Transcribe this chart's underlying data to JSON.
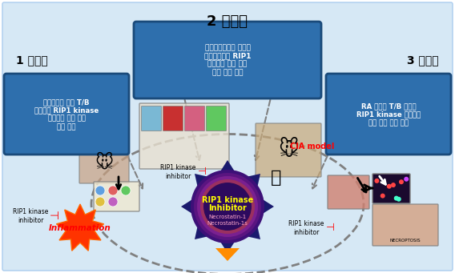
{
  "background_color": "#ffffff",
  "title_top": "2 차년도",
  "label_year1": "1 차년도",
  "label_year3": "3 차년도",
  "box_year2_text": "류마티스관절염 전임상\n동물모델에서 RIP1\n억제제에 따른 질병\n제어 효과 조사",
  "box_year1_text": "동물모델의 병인 T/B\n세포에서 RIP1 kinase\n억제제를 통한 조절\n효과 조사",
  "box_year3_text": "RA 환자의 T/B 세포에\nRIP1 kinase 억제제를\n통한 치료 효과 조사",
  "center_title1": "RIP1 kinase",
  "center_title2": "Inhibitor",
  "center_sub1": "Necrostatin-1",
  "center_sub2": "Necrostatin-1s",
  "inflammation_text": "Inflammation",
  "rip1_inhibitor_text": "RIP1 kinase\ninhibitor",
  "cia_model_text": "CIA model",
  "necroptosis_text": "NECROPTOSIS",
  "box_blue_color": "#1f4e79",
  "box_light_blue": "#2e75b6",
  "center_circle_outer": "#2b1a6e",
  "center_circle_inner_top": "#6b1a7a",
  "center_circle_inner_bottom": "#e84c1e",
  "star_color_dark": "#1a237e",
  "star_color_medium": "#6a1b9a",
  "orange_triangle": "#ff8c00",
  "yellow_text": "#ffff00",
  "pink_text": "#ffb6c1",
  "red_text": "#ff0000",
  "dark_bg": "#1a1a3e"
}
